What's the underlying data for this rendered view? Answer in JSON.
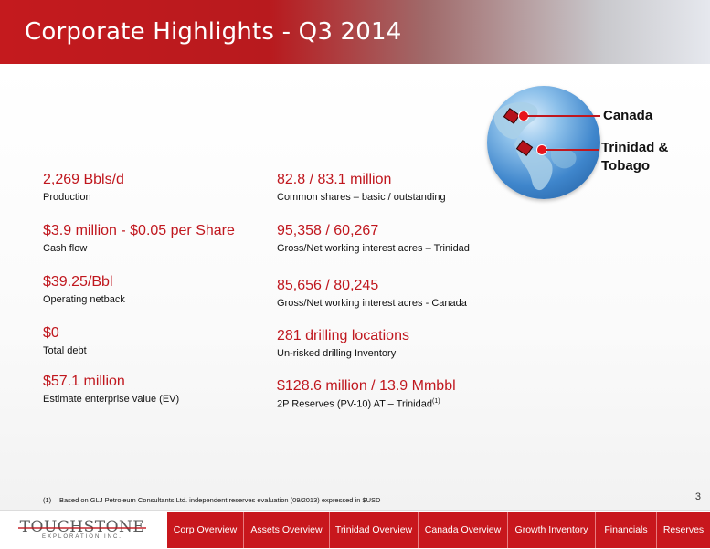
{
  "header": {
    "title": "Corporate Highlights - Q3 2014"
  },
  "metrics_left": [
    {
      "value": "2,269 Bbls/d",
      "label": "Production"
    },
    {
      "value": "$3.9 million - $0.05 per Share",
      "label": "Cash flow"
    },
    {
      "value": "$39.25/Bbl",
      "label": "Operating netback"
    },
    {
      "value": "$0",
      "label": "Total debt"
    },
    {
      "value": "$57.1 million",
      "label": "Estimate enterprise value (EV)"
    }
  ],
  "metrics_right": [
    {
      "value": "82.8 / 83.1 million",
      "label": "Common shares – basic / outstanding"
    },
    {
      "value": "95,358 / 60,267",
      "label": "Gross/Net working interest acres – Trinidad"
    },
    {
      "value": "85,656 / 80,245",
      "label": "Gross/Net working interest acres - Canada"
    },
    {
      "value": "281 drilling locations",
      "label": "Un-risked drilling Inventory"
    },
    {
      "value": "$128.6 million / 13.9 Mmbbl",
      "label": "2P Reserves (PV-10) AT – Trinidad",
      "sup": "(1)"
    }
  ],
  "map_callouts": {
    "canada": "Canada",
    "trinidad_line1": "Trinidad &",
    "trinidad_line2": "Tobago"
  },
  "footnote": {
    "num": "(1)",
    "text": "Based on GLJ Petroleum Consultants Ltd. independent reserves evaluation (09/2013) expressed in $USD"
  },
  "page_number": "3",
  "logo": {
    "word": "TOUCHSTONE",
    "sub": "EXPLORATION INC."
  },
  "nav": [
    "Corp Overview",
    "Assets Overview",
    "Trinidad Overview",
    "Canada Overview",
    "Growth Inventory",
    "Financials",
    "Reserves"
  ],
  "colors": {
    "accent": "#c0171e",
    "nav_bg": "#c8171d",
    "header_red": "#c41a1e"
  }
}
